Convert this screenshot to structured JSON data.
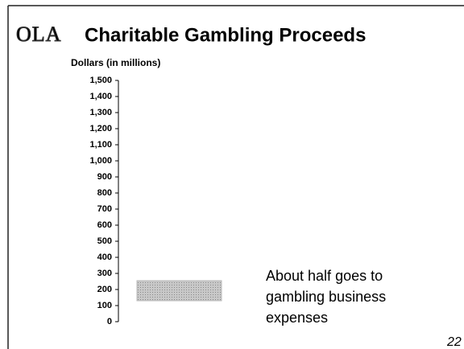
{
  "logo": "OLA",
  "page_number": "22",
  "chart_data": {
    "type": "floating_bar",
    "title": "Charitable Gambling Proceeds",
    "y_label": "Dollars (in millions)",
    "annotation": [
      "About half goes to",
      "gambling business",
      "expenses"
    ],
    "ranges": [
      [
        130,
        255
      ]
    ],
    "color": "#b8b8b8",
    "ylim": [
      0,
      1500
    ],
    "yticks": [
      0,
      100,
      200,
      300,
      400,
      500,
      600,
      700,
      800,
      900,
      {
        "value": 1000,
        "label": "1,000"
      },
      {
        "value": 1100,
        "label": "1,100"
      },
      {
        "value": 1200,
        "label": "1,200"
      },
      {
        "value": 1300,
        "label": "1,300"
      },
      {
        "value": 1400,
        "label": "1,400"
      },
      {
        "value": 1500,
        "label": "1,500"
      }
    ]
  }
}
